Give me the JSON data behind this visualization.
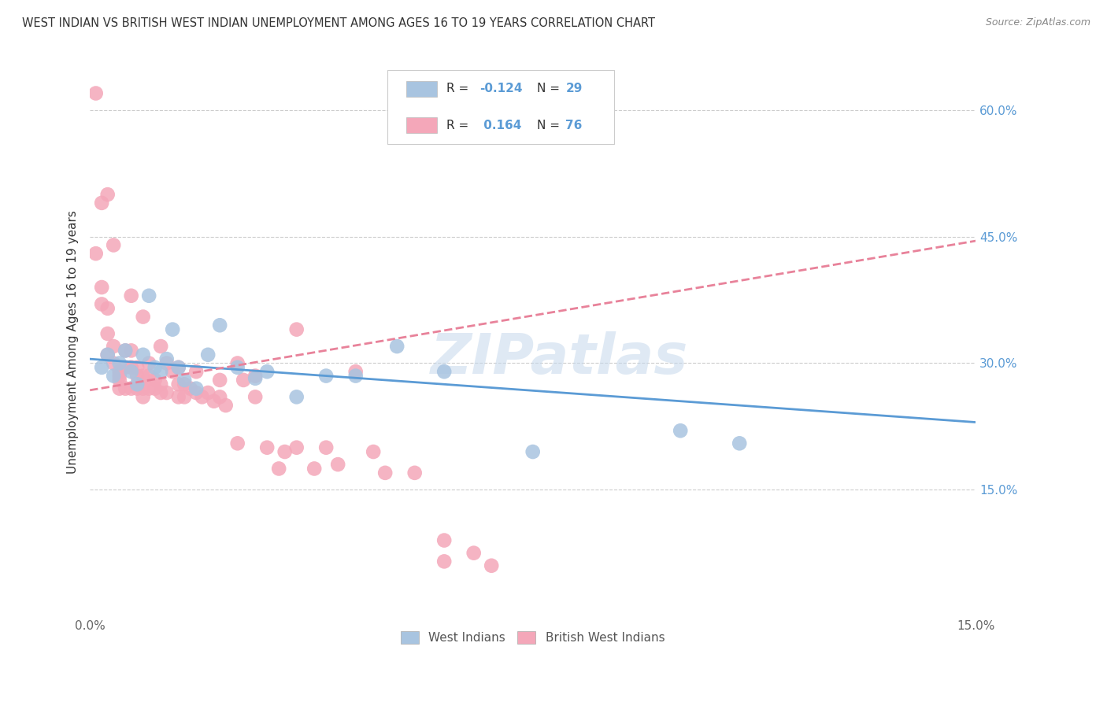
{
  "title": "WEST INDIAN VS BRITISH WEST INDIAN UNEMPLOYMENT AMONG AGES 16 TO 19 YEARS CORRELATION CHART",
  "source": "Source: ZipAtlas.com",
  "ylabel": "Unemployment Among Ages 16 to 19 years",
  "xlim": [
    0.0,
    0.15
  ],
  "ylim": [
    0.0,
    0.65
  ],
  "yticks_right": [
    0.15,
    0.3,
    0.45,
    0.6
  ],
  "ytick_labels_right": [
    "15.0%",
    "30.0%",
    "45.0%",
    "60.0%"
  ],
  "blue_color": "#a8c4e0",
  "blue_line_color": "#5b9bd5",
  "pink_color": "#f4a7b9",
  "pink_line_color": "#e8829a",
  "background_color": "#ffffff",
  "grid_color": "#cccccc",
  "watermark": "ZIPatlas",
  "west_indian_x": [
    0.002,
    0.003,
    0.004,
    0.005,
    0.006,
    0.007,
    0.008,
    0.009,
    0.01,
    0.011,
    0.012,
    0.013,
    0.014,
    0.015,
    0.016,
    0.018,
    0.02,
    0.022,
    0.025,
    0.028,
    0.03,
    0.035,
    0.04,
    0.045,
    0.052,
    0.06,
    0.075,
    0.1,
    0.11
  ],
  "west_indian_y": [
    0.295,
    0.31,
    0.285,
    0.3,
    0.315,
    0.29,
    0.275,
    0.31,
    0.38,
    0.295,
    0.29,
    0.305,
    0.34,
    0.295,
    0.28,
    0.27,
    0.31,
    0.345,
    0.295,
    0.282,
    0.29,
    0.26,
    0.285,
    0.285,
    0.32,
    0.29,
    0.195,
    0.22,
    0.205
  ],
  "brit_west_indian_x": [
    0.001,
    0.001,
    0.002,
    0.002,
    0.003,
    0.003,
    0.003,
    0.004,
    0.004,
    0.005,
    0.005,
    0.005,
    0.005,
    0.006,
    0.006,
    0.006,
    0.007,
    0.007,
    0.007,
    0.008,
    0.008,
    0.008,
    0.009,
    0.009,
    0.009,
    0.01,
    0.01,
    0.01,
    0.011,
    0.011,
    0.012,
    0.012,
    0.013,
    0.013,
    0.014,
    0.015,
    0.015,
    0.016,
    0.016,
    0.017,
    0.018,
    0.019,
    0.02,
    0.021,
    0.022,
    0.023,
    0.025,
    0.025,
    0.026,
    0.028,
    0.028,
    0.03,
    0.032,
    0.033,
    0.035,
    0.035,
    0.038,
    0.04,
    0.042,
    0.045,
    0.048,
    0.05,
    0.055,
    0.06,
    0.06,
    0.065,
    0.068,
    0.002,
    0.003,
    0.004,
    0.007,
    0.009,
    0.012,
    0.015,
    0.018,
    0.022
  ],
  "brit_west_indian_y": [
    0.62,
    0.43,
    0.39,
    0.37,
    0.365,
    0.335,
    0.31,
    0.32,
    0.3,
    0.29,
    0.285,
    0.28,
    0.27,
    0.315,
    0.295,
    0.27,
    0.315,
    0.295,
    0.27,
    0.295,
    0.285,
    0.27,
    0.285,
    0.27,
    0.26,
    0.3,
    0.285,
    0.27,
    0.28,
    0.27,
    0.275,
    0.265,
    0.3,
    0.265,
    0.29,
    0.275,
    0.26,
    0.275,
    0.26,
    0.27,
    0.265,
    0.26,
    0.265,
    0.255,
    0.26,
    0.25,
    0.205,
    0.3,
    0.28,
    0.285,
    0.26,
    0.2,
    0.175,
    0.195,
    0.2,
    0.34,
    0.175,
    0.2,
    0.18,
    0.29,
    0.195,
    0.17,
    0.17,
    0.09,
    0.065,
    0.075,
    0.06,
    0.49,
    0.5,
    0.44,
    0.38,
    0.355,
    0.32,
    0.295,
    0.29,
    0.28
  ],
  "wi_trend_x0": 0.0,
  "wi_trend_x1": 0.15,
  "wi_trend_y0": 0.305,
  "wi_trend_y1": 0.23,
  "bwi_trend_x0": 0.0,
  "bwi_trend_x1": 0.15,
  "bwi_trend_y0": 0.268,
  "bwi_trend_y1": 0.445
}
